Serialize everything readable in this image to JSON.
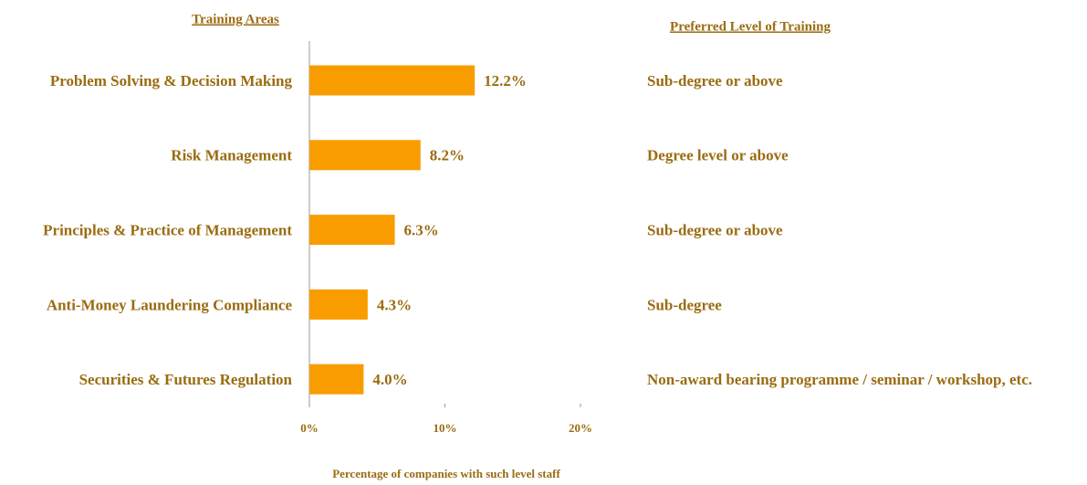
{
  "chart_data": {
    "type": "bar",
    "orientation": "horizontal",
    "left_header": "Training Areas",
    "right_header": "Preferred Level of Training",
    "x_label": "Percentage of companies with such level staff",
    "categories": [
      "Problem Solving & Decision Making",
      "Risk Management",
      "Principles & Practice of Management",
      "Anti-Money Laundering Compliance",
      "Securities & Futures Regulation"
    ],
    "values": [
      12.2,
      8.2,
      6.3,
      4.3,
      4.0
    ],
    "value_labels": [
      "12.2%",
      "8.2%",
      "6.3%",
      "4.3%",
      "4.0%"
    ],
    "preferred_levels": [
      "Sub-degree or above",
      "Degree level or above",
      "Sub-degree or above",
      "Sub-degree",
      "Non-award bearing programme / seminar / workshop, etc."
    ],
    "color": "#f99c00",
    "xlim": [
      0,
      20
    ],
    "xticks": [
      {
        "value": 0,
        "label": "0%"
      },
      {
        "value": 10,
        "label": "10%"
      },
      {
        "value": 20,
        "label": "20%"
      }
    ]
  }
}
